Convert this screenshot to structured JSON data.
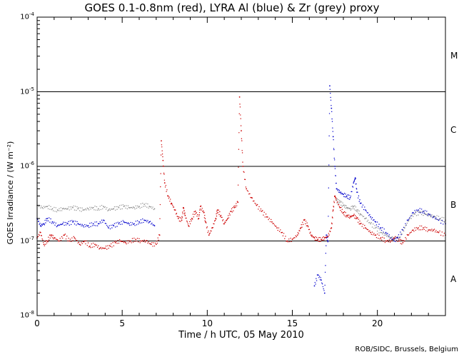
{
  "chart_data": {
    "type": "scatter",
    "title": "GOES 0.1-0.8nm (red), LYRA Al (blue) & Zr (grey) proxy",
    "xlabel": "Time / h UTC, 05 May 2010",
    "ylabel": "GOES Irradiance / (W m⁻²)",
    "credit": "ROB/SIDC, Brussels, Belgium",
    "xlim": [
      0,
      24
    ],
    "ylim": [
      1e-08,
      0.0001
    ],
    "yscale": "log",
    "x_ticks": [
      {
        "value": 0,
        "label": "0"
      },
      {
        "value": 5,
        "label": "5"
      },
      {
        "value": 10,
        "label": "10"
      },
      {
        "value": 15,
        "label": "15"
      },
      {
        "value": 20,
        "label": "20"
      }
    ],
    "y_ticks": [
      {
        "value": 1e-08,
        "base": "10",
        "exp": "-8"
      },
      {
        "value": 1e-07,
        "base": "10",
        "exp": "-7"
      },
      {
        "value": 1e-06,
        "base": "10",
        "exp": "-6"
      },
      {
        "value": 1e-05,
        "base": "10",
        "exp": "-5"
      },
      {
        "value": 0.0001,
        "base": "10",
        "exp": "-4"
      }
    ],
    "class_lines": [
      1e-07,
      1e-06,
      1e-05
    ],
    "flare_classes": [
      {
        "label": "A",
        "value": 3e-08
      },
      {
        "label": "B",
        "value": 3e-07
      },
      {
        "label": "C",
        "value": 3e-06
      },
      {
        "label": "M",
        "value": 3e-05
      }
    ],
    "series": [
      {
        "name": "GOES 0.1-0.8nm",
        "color": "#cc0000",
        "points": [
          [
            0.0,
            1.1e-07
          ],
          [
            0.2,
            1.3e-07
          ],
          [
            0.4,
            9e-08
          ],
          [
            0.6,
            1e-07
          ],
          [
            0.8,
            1.2e-07
          ],
          [
            1.0,
            1.1e-07
          ],
          [
            1.3,
            1e-07
          ],
          [
            1.6,
            1.2e-07
          ],
          [
            1.9,
            1e-07
          ],
          [
            2.2,
            1.1e-07
          ],
          [
            2.5,
            9e-08
          ],
          [
            2.8,
            1e-07
          ],
          [
            3.1,
            8.5e-08
          ],
          [
            3.4,
            9e-08
          ],
          [
            3.7,
            8e-08
          ],
          [
            4.0,
            8e-08
          ],
          [
            4.3,
            8.5e-08
          ],
          [
            4.6,
            9.5e-08
          ],
          [
            4.9,
            1e-07
          ],
          [
            5.2,
            9.5e-08
          ],
          [
            5.5,
            1e-07
          ],
          [
            5.8,
            1.05e-07
          ],
          [
            6.1,
            1e-07
          ],
          [
            6.4,
            1e-07
          ],
          [
            6.7,
            9e-08
          ],
          [
            7.0,
            9e-08
          ],
          [
            7.2,
            1.2e-07
          ],
          [
            7.3,
            2.2e-06
          ],
          [
            7.4,
            1.2e-06
          ],
          [
            7.5,
            6e-07
          ],
          [
            7.7,
            4e-07
          ],
          [
            7.9,
            3.2e-07
          ],
          [
            8.1,
            2.6e-07
          ],
          [
            8.3,
            2e-07
          ],
          [
            8.5,
            1.9e-07
          ],
          [
            8.6,
            2.8e-07
          ],
          [
            8.7,
            2.2e-07
          ],
          [
            8.9,
            1.6e-07
          ],
          [
            9.1,
            2e-07
          ],
          [
            9.3,
            2.5e-07
          ],
          [
            9.5,
            2e-07
          ],
          [
            9.6,
            2.9e-07
          ],
          [
            9.8,
            2.4e-07
          ],
          [
            9.9,
            1.8e-07
          ],
          [
            10.1,
            1.2e-07
          ],
          [
            10.3,
            1.5e-07
          ],
          [
            10.5,
            2e-07
          ],
          [
            10.6,
            2.6e-07
          ],
          [
            10.8,
            2.2e-07
          ],
          [
            11.0,
            1.7e-07
          ],
          [
            11.2,
            2e-07
          ],
          [
            11.4,
            2.5e-07
          ],
          [
            11.6,
            2.8e-07
          ],
          [
            11.8,
            3.3e-07
          ],
          [
            11.9,
            8.5e-06
          ],
          [
            12.0,
            3e-06
          ],
          [
            12.1,
            1e-06
          ],
          [
            12.3,
            5e-07
          ],
          [
            12.6,
            3.8e-07
          ],
          [
            12.9,
            3e-07
          ],
          [
            13.2,
            2.5e-07
          ],
          [
            13.5,
            2.1e-07
          ],
          [
            13.8,
            1.8e-07
          ],
          [
            14.1,
            1.5e-07
          ],
          [
            14.4,
            1.3e-07
          ],
          [
            14.7,
            1e-07
          ],
          [
            15.0,
            1.05e-07
          ],
          [
            15.3,
            1.2e-07
          ],
          [
            15.5,
            1.5e-07
          ],
          [
            15.7,
            1.9e-07
          ],
          [
            15.9,
            1.6e-07
          ],
          [
            16.1,
            1.2e-07
          ],
          [
            16.3,
            1.1e-07
          ],
          [
            16.5,
            1.05e-07
          ],
          [
            16.7,
            1.05e-07
          ],
          [
            16.9,
            1.1e-07
          ],
          [
            17.1,
            1.15e-07
          ],
          [
            17.3,
            1.5e-07
          ],
          [
            17.4,
            2.6e-07
          ],
          [
            17.5,
            4e-07
          ],
          [
            17.6,
            3.5e-07
          ],
          [
            17.8,
            2.8e-07
          ],
          [
            18.0,
            2.4e-07
          ],
          [
            18.2,
            2.2e-07
          ],
          [
            18.4,
            2.1e-07
          ],
          [
            18.6,
            2.2e-07
          ],
          [
            18.8,
            2e-07
          ],
          [
            19.0,
            1.7e-07
          ],
          [
            19.3,
            1.5e-07
          ],
          [
            19.6,
            1.3e-07
          ],
          [
            19.9,
            1.2e-07
          ],
          [
            20.2,
            1.1e-07
          ],
          [
            20.5,
            1e-07
          ],
          [
            20.8,
            1e-07
          ],
          [
            21.0,
            1.1e-07
          ],
          [
            21.3,
            1e-07
          ],
          [
            21.5,
            9.5e-08
          ],
          [
            21.8,
            1.2e-07
          ],
          [
            22.1,
            1.4e-07
          ],
          [
            22.4,
            1.5e-07
          ],
          [
            22.7,
            1.5e-07
          ],
          [
            23.0,
            1.4e-07
          ],
          [
            23.3,
            1.4e-07
          ],
          [
            23.6,
            1.3e-07
          ],
          [
            24.0,
            1.2e-07
          ]
        ]
      },
      {
        "name": "LYRA Al proxy",
        "color": "#0000cc",
        "points": [
          [
            0.0,
            2e-07
          ],
          [
            0.2,
            1.6e-07
          ],
          [
            0.4,
            1.7e-07
          ],
          [
            0.6,
            2e-07
          ],
          [
            0.9,
            1.8e-07
          ],
          [
            1.2,
            1.6e-07
          ],
          [
            1.5,
            1.7e-07
          ],
          [
            1.8,
            1.7e-07
          ],
          [
            2.1,
            1.8e-07
          ],
          [
            2.4,
            1.7e-07
          ],
          [
            2.7,
            1.6e-07
          ],
          [
            3.0,
            1.6e-07
          ],
          [
            3.3,
            1.7e-07
          ],
          [
            3.6,
            1.7e-07
          ],
          [
            3.9,
            1.9e-07
          ],
          [
            4.2,
            1.5e-07
          ],
          [
            4.5,
            1.6e-07
          ],
          [
            4.8,
            1.7e-07
          ],
          [
            5.1,
            1.8e-07
          ],
          [
            5.4,
            1.7e-07
          ],
          [
            5.7,
            1.7e-07
          ],
          [
            6.0,
            1.8e-07
          ],
          [
            6.3,
            1.9e-07
          ],
          [
            6.6,
            1.8e-07
          ],
          [
            6.9,
            1.6e-07
          ],
          [
            16.3,
            2.5e-08
          ],
          [
            16.5,
            3.5e-08
          ],
          [
            16.7,
            3e-08
          ],
          [
            16.9,
            2e-08
          ],
          [
            17.0,
            1.2e-07
          ],
          [
            17.1,
            1e-07
          ],
          [
            17.2,
            1.2e-05
          ],
          [
            17.3,
            6e-06
          ],
          [
            17.4,
            2.5e-06
          ],
          [
            17.5,
            1e-06
          ],
          [
            17.6,
            5e-07
          ],
          [
            17.8,
            4.5e-07
          ],
          [
            18.0,
            4.2e-07
          ],
          [
            18.2,
            4e-07
          ],
          [
            18.4,
            3.8e-07
          ],
          [
            18.6,
            6e-07
          ],
          [
            18.7,
            7e-07
          ],
          [
            18.8,
            4.5e-07
          ],
          [
            19.0,
            3.2e-07
          ],
          [
            19.3,
            2.6e-07
          ],
          [
            19.6,
            2.1e-07
          ],
          [
            19.9,
            1.8e-07
          ],
          [
            20.2,
            1.5e-07
          ],
          [
            20.5,
            1.3e-07
          ],
          [
            20.8,
            1.1e-07
          ],
          [
            21.0,
            1e-07
          ],
          [
            21.2,
            1.1e-07
          ],
          [
            21.5,
            1.4e-07
          ],
          [
            21.8,
            1.9e-07
          ],
          [
            22.1,
            2.4e-07
          ],
          [
            22.4,
            2.6e-07
          ],
          [
            22.7,
            2.5e-07
          ],
          [
            23.0,
            2.3e-07
          ],
          [
            23.3,
            2.1e-07
          ],
          [
            23.6,
            1.9e-07
          ],
          [
            24.0,
            1.7e-07
          ]
        ]
      },
      {
        "name": "LYRA Zr proxy",
        "color": "#909090",
        "points": [
          [
            0.0,
            3e-07
          ],
          [
            0.3,
            2.8e-07
          ],
          [
            0.6,
            2.9e-07
          ],
          [
            0.9,
            2.7e-07
          ],
          [
            1.2,
            2.6e-07
          ],
          [
            1.5,
            2.7e-07
          ],
          [
            1.8,
            2.7e-07
          ],
          [
            2.1,
            2.8e-07
          ],
          [
            2.4,
            2.7e-07
          ],
          [
            2.7,
            2.6e-07
          ],
          [
            3.0,
            2.7e-07
          ],
          [
            3.3,
            2.8e-07
          ],
          [
            3.6,
            2.7e-07
          ],
          [
            3.9,
            2.9e-07
          ],
          [
            4.2,
            2.6e-07
          ],
          [
            4.5,
            2.7e-07
          ],
          [
            4.8,
            2.8e-07
          ],
          [
            5.1,
            2.9e-07
          ],
          [
            5.4,
            2.8e-07
          ],
          [
            5.7,
            2.8e-07
          ],
          [
            6.0,
            2.9e-07
          ],
          [
            6.3,
            3.1e-07
          ],
          [
            6.6,
            2.9e-07
          ],
          [
            6.9,
            2.7e-07
          ],
          [
            17.6,
            3.5e-07
          ],
          [
            17.8,
            3.3e-07
          ],
          [
            18.0,
            3e-07
          ],
          [
            18.2,
            2.8e-07
          ],
          [
            18.4,
            2.7e-07
          ],
          [
            18.6,
            2.9e-07
          ],
          [
            18.8,
            2.6e-07
          ],
          [
            19.0,
            2.3e-07
          ],
          [
            19.3,
            2e-07
          ],
          [
            19.6,
            1.7e-07
          ],
          [
            19.9,
            1.5e-07
          ],
          [
            20.2,
            1.3e-07
          ],
          [
            20.5,
            1.2e-07
          ],
          [
            20.8,
            1.1e-07
          ],
          [
            21.0,
            1.05e-07
          ],
          [
            21.3,
            1.1e-07
          ],
          [
            21.6,
            1.5e-07
          ],
          [
            21.9,
            2e-07
          ],
          [
            22.2,
            2.3e-07
          ],
          [
            22.5,
            2.4e-07
          ],
          [
            22.8,
            2.3e-07
          ],
          [
            23.1,
            2.2e-07
          ],
          [
            23.4,
            2.1e-07
          ],
          [
            23.7,
            2e-07
          ],
          [
            24.0,
            1.9e-07
          ]
        ]
      }
    ]
  }
}
